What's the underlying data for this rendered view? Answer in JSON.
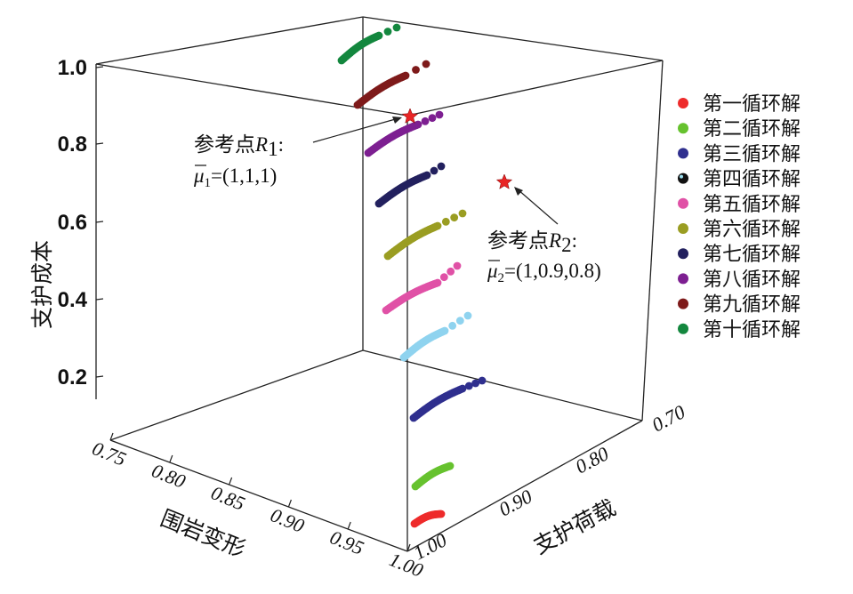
{
  "chart_data": {
    "type": "scatter",
    "z_label": "支护成本",
    "x_label": "围岩变形",
    "y_label": "支护荷载",
    "z_ticks": [
      "1.0",
      "0.8",
      "0.6",
      "0.4",
      "0.2"
    ],
    "x_ticks": [
      "0.75",
      "0.80",
      "0.85",
      "0.90",
      "0.95",
      "1.00"
    ],
    "y_ticks": [
      "1.00",
      "0.90",
      "0.80",
      "0.70"
    ],
    "legend": [
      {
        "label": "第一循环解",
        "color": "#ee2b2b"
      },
      {
        "label": "第二循环解",
        "color": "#66c22e"
      },
      {
        "label": "第三循环解",
        "color": "#2f2f8e"
      },
      {
        "label": "第四循环解",
        "color": "#111111"
      },
      {
        "label": "第五循环解",
        "color": "#e051a6"
      },
      {
        "label": "第六循环解",
        "color": "#9a9d22"
      },
      {
        "label": "第七循环解",
        "color": "#22205e"
      },
      {
        "label": "第八循环解",
        "color": "#7d1f91"
      },
      {
        "label": "第九循环解",
        "color": "#7e1a1a"
      },
      {
        "label": "第十循环解",
        "color": "#13873e"
      }
    ],
    "series_colors": {
      "c1": "#ee2b2b",
      "c2": "#66c22e",
      "c3": "#2f2f8e",
      "c_cyan": "#8fd3ef",
      "c5": "#e051a6",
      "c6": "#9a9d22",
      "c7": "#22205e",
      "c8": "#7d1f91",
      "c9": "#7e1a1a",
      "c10": "#13873e",
      "star": "#e82525"
    },
    "reference_points": [
      {
        "label_prefix": "参考点",
        "label_symbol": "R",
        "label_sub": "1",
        "value_symbol": "μ",
        "value_sub": "1",
        "value": "=(1,1,1)"
      },
      {
        "label_prefix": "参考点",
        "label_symbol": "R",
        "label_sub": "2",
        "value_symbol": "μ",
        "value_sub": "2",
        "value": "=(1,0.9,0.8)"
      }
    ]
  }
}
